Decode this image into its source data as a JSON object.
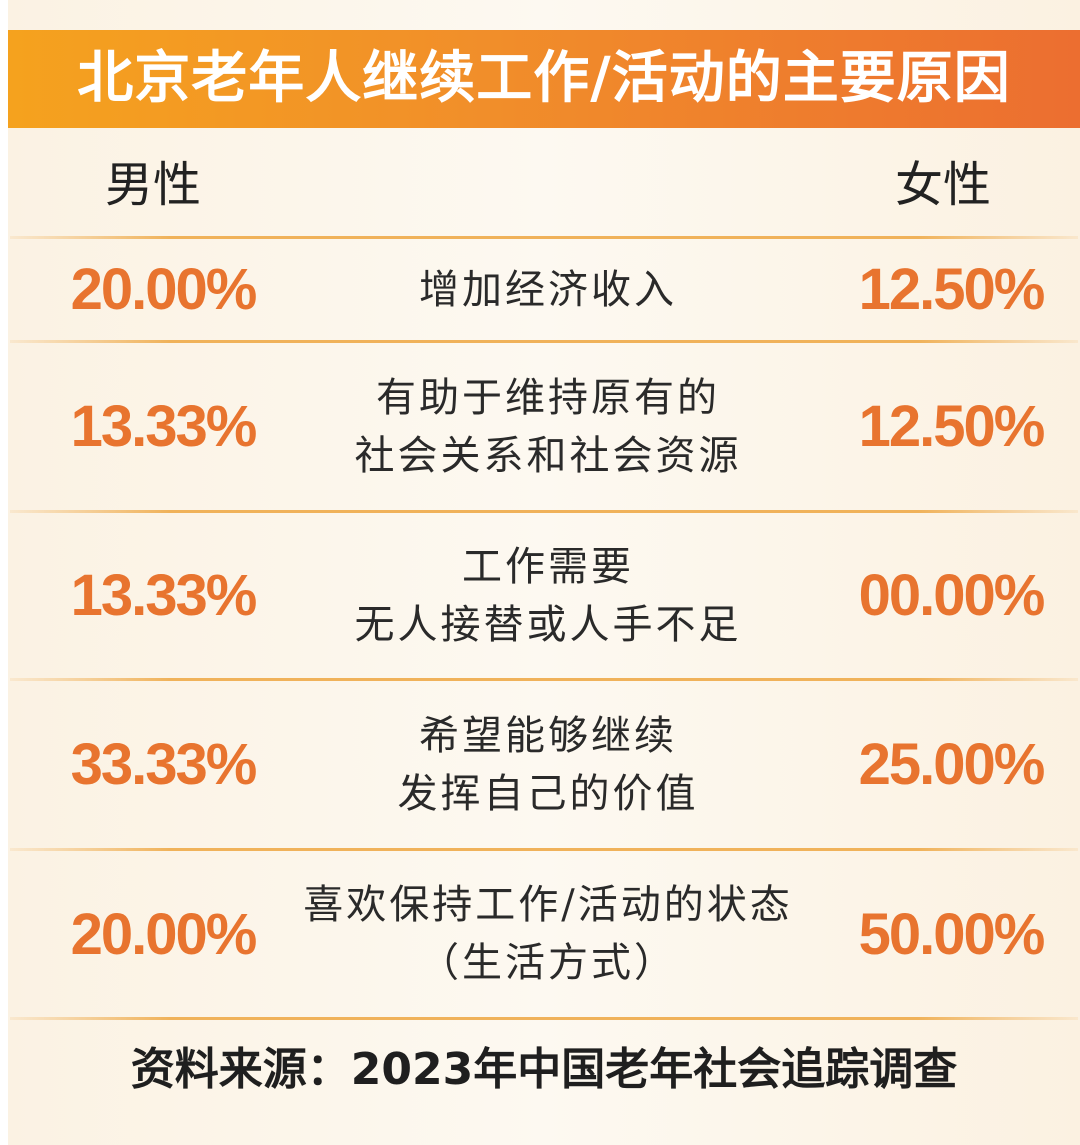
{
  "chart_data": {
    "type": "table",
    "title": "北京老年人继续工作/活动的主要原因",
    "columns": [
      "男性",
      "女性"
    ],
    "rows": [
      {
        "reason_lines": [
          "增加经济收入"
        ],
        "male": "20.00%",
        "female": "12.50%"
      },
      {
        "reason_lines": [
          "有助于维持原有的",
          "社会关系和社会资源"
        ],
        "male": "13.33%",
        "female": "12.50%"
      },
      {
        "reason_lines": [
          "工作需要",
          "无人接替或人手不足"
        ],
        "male": "13.33%",
        "female": "00.00%"
      },
      {
        "reason_lines": [
          "希望能够继续",
          "发挥自己的价值"
        ],
        "male": "33.33%",
        "female": "25.00%"
      },
      {
        "reason_lines": [
          "喜欢保持工作/活动的状态",
          "（生活方式）"
        ],
        "male": "20.00%",
        "female": "50.00%"
      }
    ],
    "source": "资料来源：2023年中国老年社会追踪调查"
  },
  "colors": {
    "title_band_start": "#f5a21e",
    "title_band_end": "#ec6e30",
    "percent_text": "#e8742f",
    "background": "#fbf2e3"
  }
}
